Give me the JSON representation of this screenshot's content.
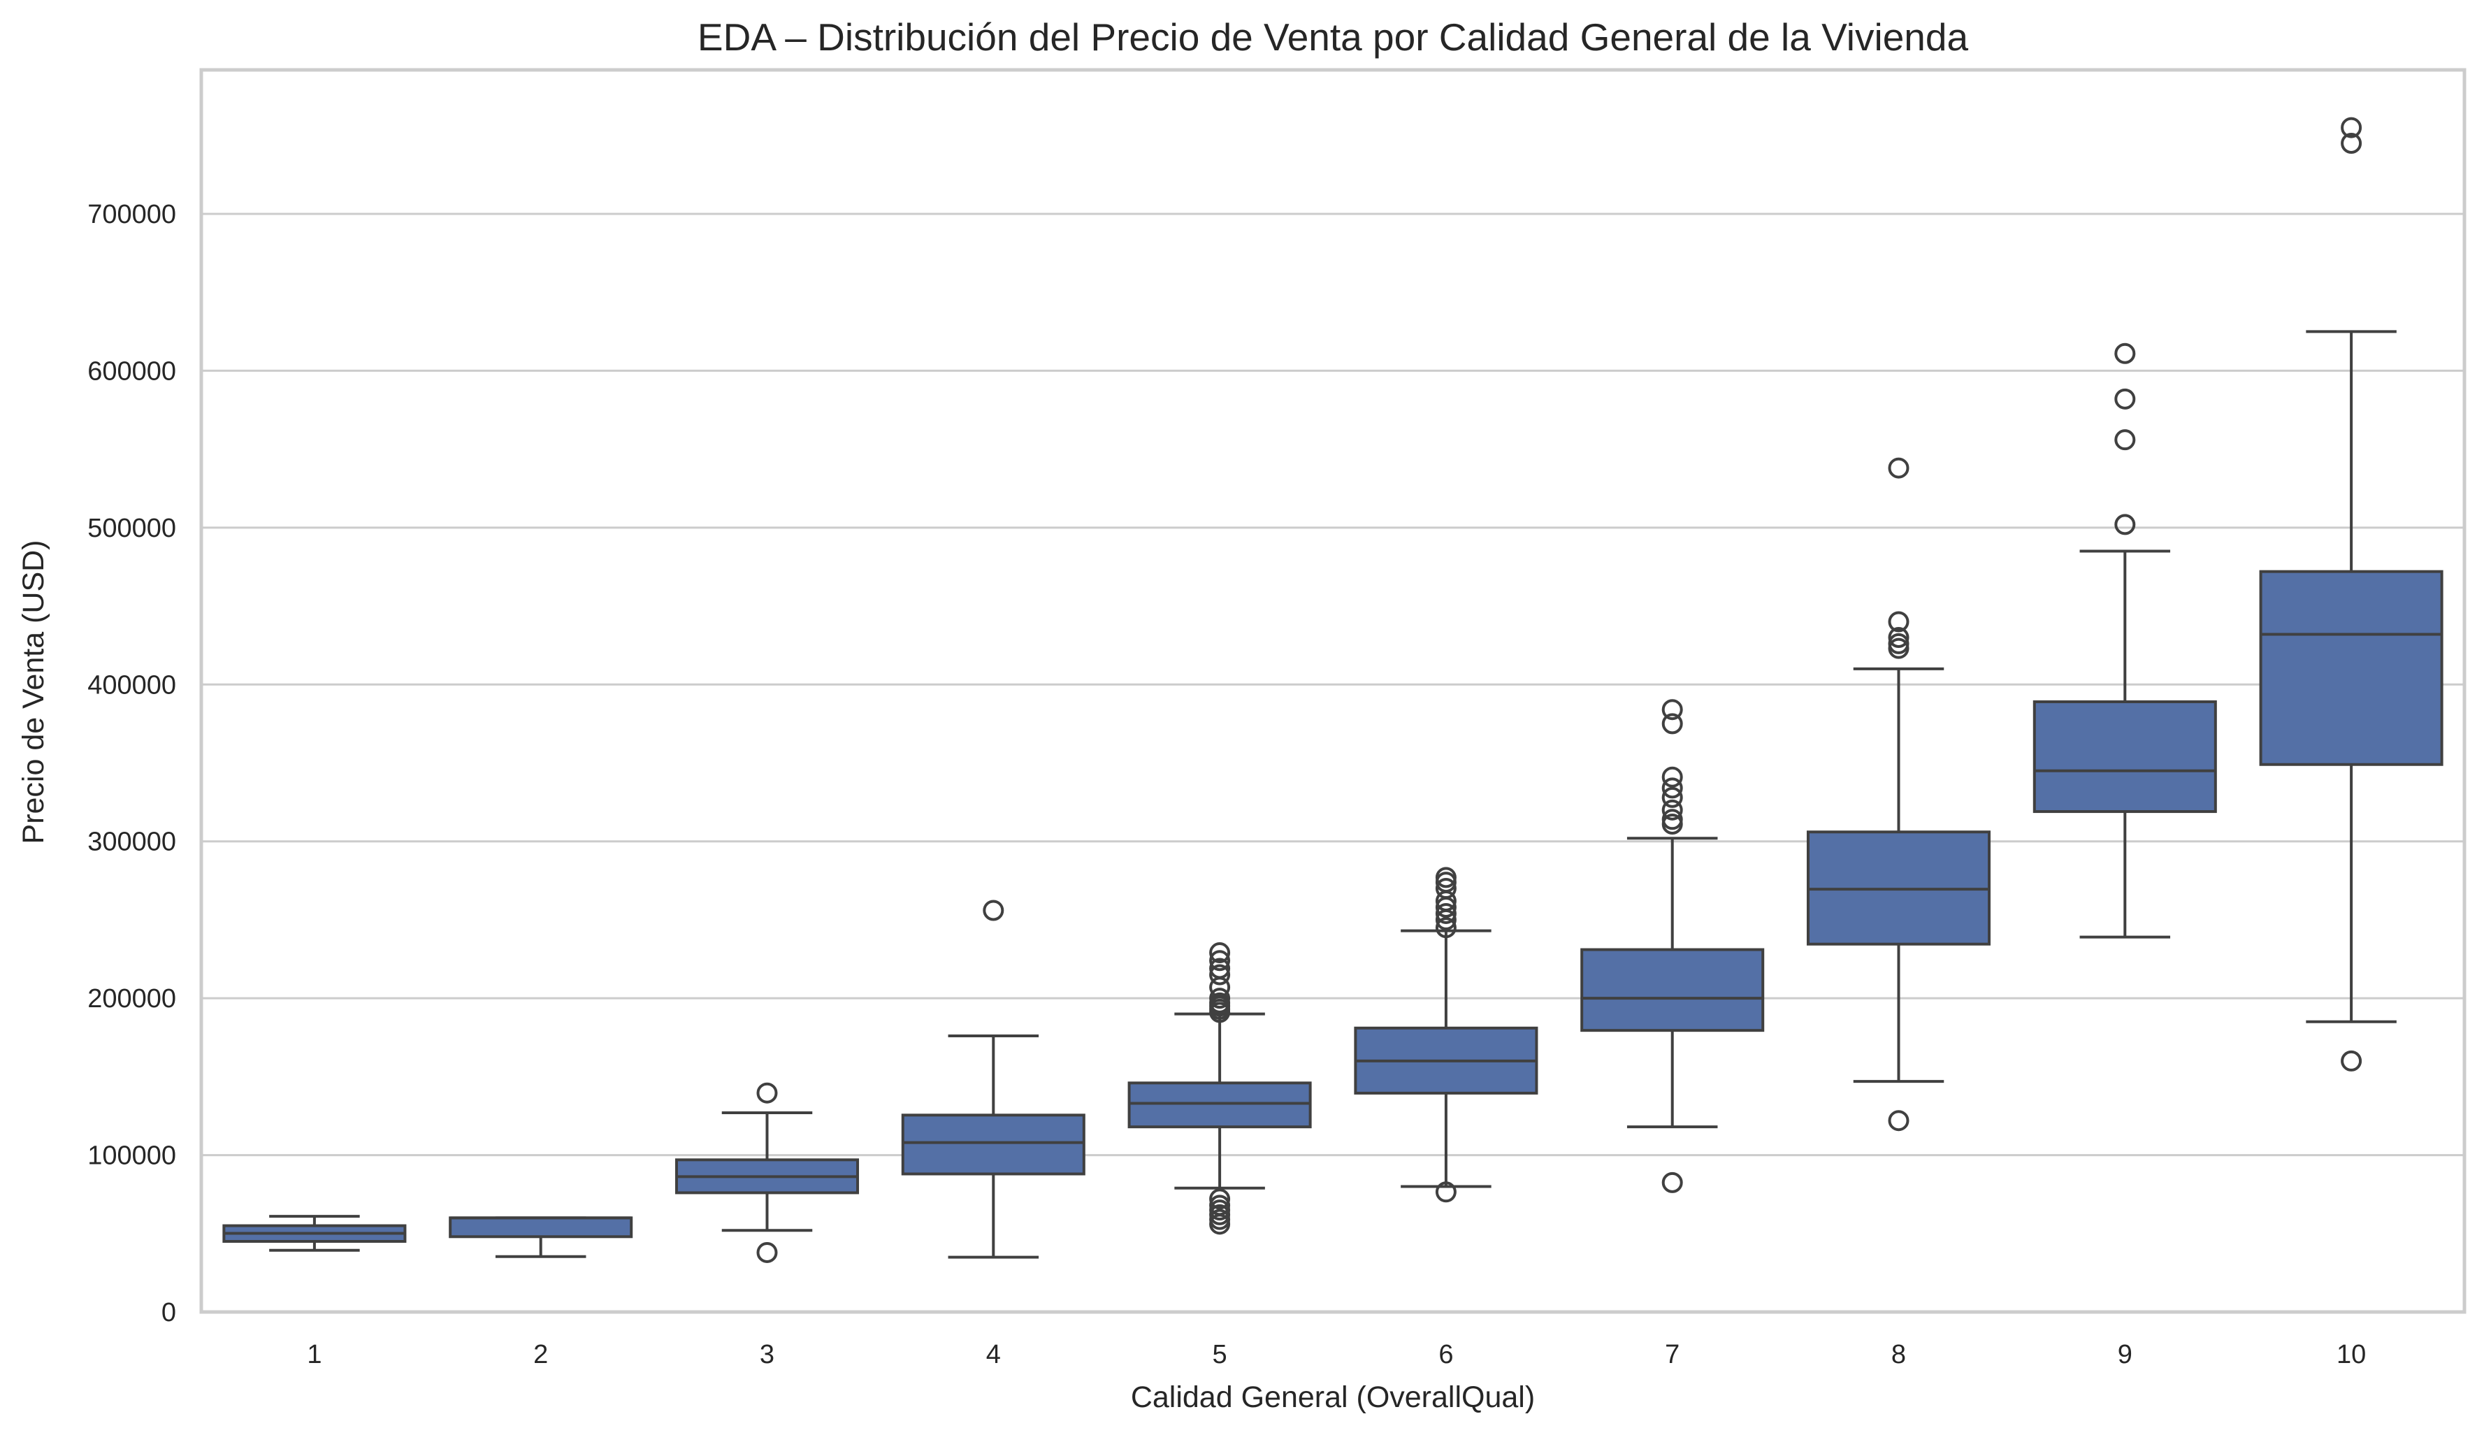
{
  "chart_data": {
    "type": "box",
    "title": "EDA – Distribución del Precio de Venta por Calidad General de la Vivienda",
    "xlabel": "Calidad General (OverallQual)",
    "ylabel": "Precio de Venta (USD)",
    "ylim": [
      0,
      790000
    ],
    "yticks": [
      0,
      100000,
      200000,
      300000,
      400000,
      500000,
      600000,
      700000
    ],
    "ytick_labels": [
      "0",
      "100000",
      "200000",
      "300000",
      "400000",
      "500000",
      "600000",
      "700000"
    ],
    "grid": "horizontal",
    "legend": "none",
    "colors": {
      "box": "#5470a6",
      "line": "#404040",
      "grid": "#cccccc",
      "frame": "#cccccc"
    },
    "categories": [
      "1",
      "2",
      "3",
      "4",
      "5",
      "6",
      "7",
      "8",
      "9",
      "10"
    ],
    "boxes": [
      {
        "category": "1",
        "whisker_low": 39300,
        "q1": 45000,
        "median": 50150,
        "q3": 55000,
        "whisker_high": 61000,
        "outliers": []
      },
      {
        "category": "2",
        "whisker_low": 35311,
        "q1": 48000,
        "median": 60000,
        "q3": 60000,
        "whisker_high": 60000,
        "outliers": []
      },
      {
        "category": "3",
        "whisker_low": 52000,
        "q1": 76000,
        "median": 86250,
        "q3": 97000,
        "whisker_high": 127000,
        "outliers": [
          37900,
          139600
        ]
      },
      {
        "category": "4",
        "whisker_low": 34900,
        "q1": 88000,
        "median": 108000,
        "q3": 125500,
        "whisker_high": 176000,
        "outliers": [
          256000
        ]
      },
      {
        "category": "5",
        "whisker_low": 79000,
        "q1": 118000,
        "median": 133000,
        "q3": 146000,
        "whisker_high": 190000,
        "outliers": [
          56000,
          59000,
          62000,
          65000,
          68000,
          72000,
          191000,
          193000,
          195000,
          197000,
          200000,
          207000,
          215000,
          219000,
          224000,
          229000
        ]
      },
      {
        "category": "6",
        "whisker_low": 80000,
        "q1": 139500,
        "median": 160000,
        "q3": 181000,
        "whisker_high": 243000,
        "outliers": [
          76500,
          245000,
          250000,
          254000,
          258000,
          262000,
          270000,
          274000,
          277000
        ]
      },
      {
        "category": "7",
        "whisker_low": 118000,
        "q1": 179500,
        "median": 200000,
        "q3": 231000,
        "whisker_high": 302000,
        "outliers": [
          82500,
          311000,
          314000,
          320000,
          328000,
          334000,
          341000,
          375000,
          384000
        ]
      },
      {
        "category": "8",
        "whisker_low": 147000,
        "q1": 234500,
        "median": 269500,
        "q3": 306000,
        "whisker_high": 410000,
        "outliers": [
          122000,
          423000,
          426000,
          430000,
          440000,
          538000
        ]
      },
      {
        "category": "9",
        "whisker_low": 239000,
        "q1": 319000,
        "median": 345000,
        "q3": 389000,
        "whisker_high": 485000,
        "outliers": [
          502000,
          556000,
          582000,
          611000
        ]
      },
      {
        "category": "10",
        "whisker_low": 185000,
        "q1": 349000,
        "median": 432000,
        "q3": 472000,
        "whisker_high": 625000,
        "outliers": [
          160000,
          745000,
          755000
        ]
      }
    ]
  }
}
